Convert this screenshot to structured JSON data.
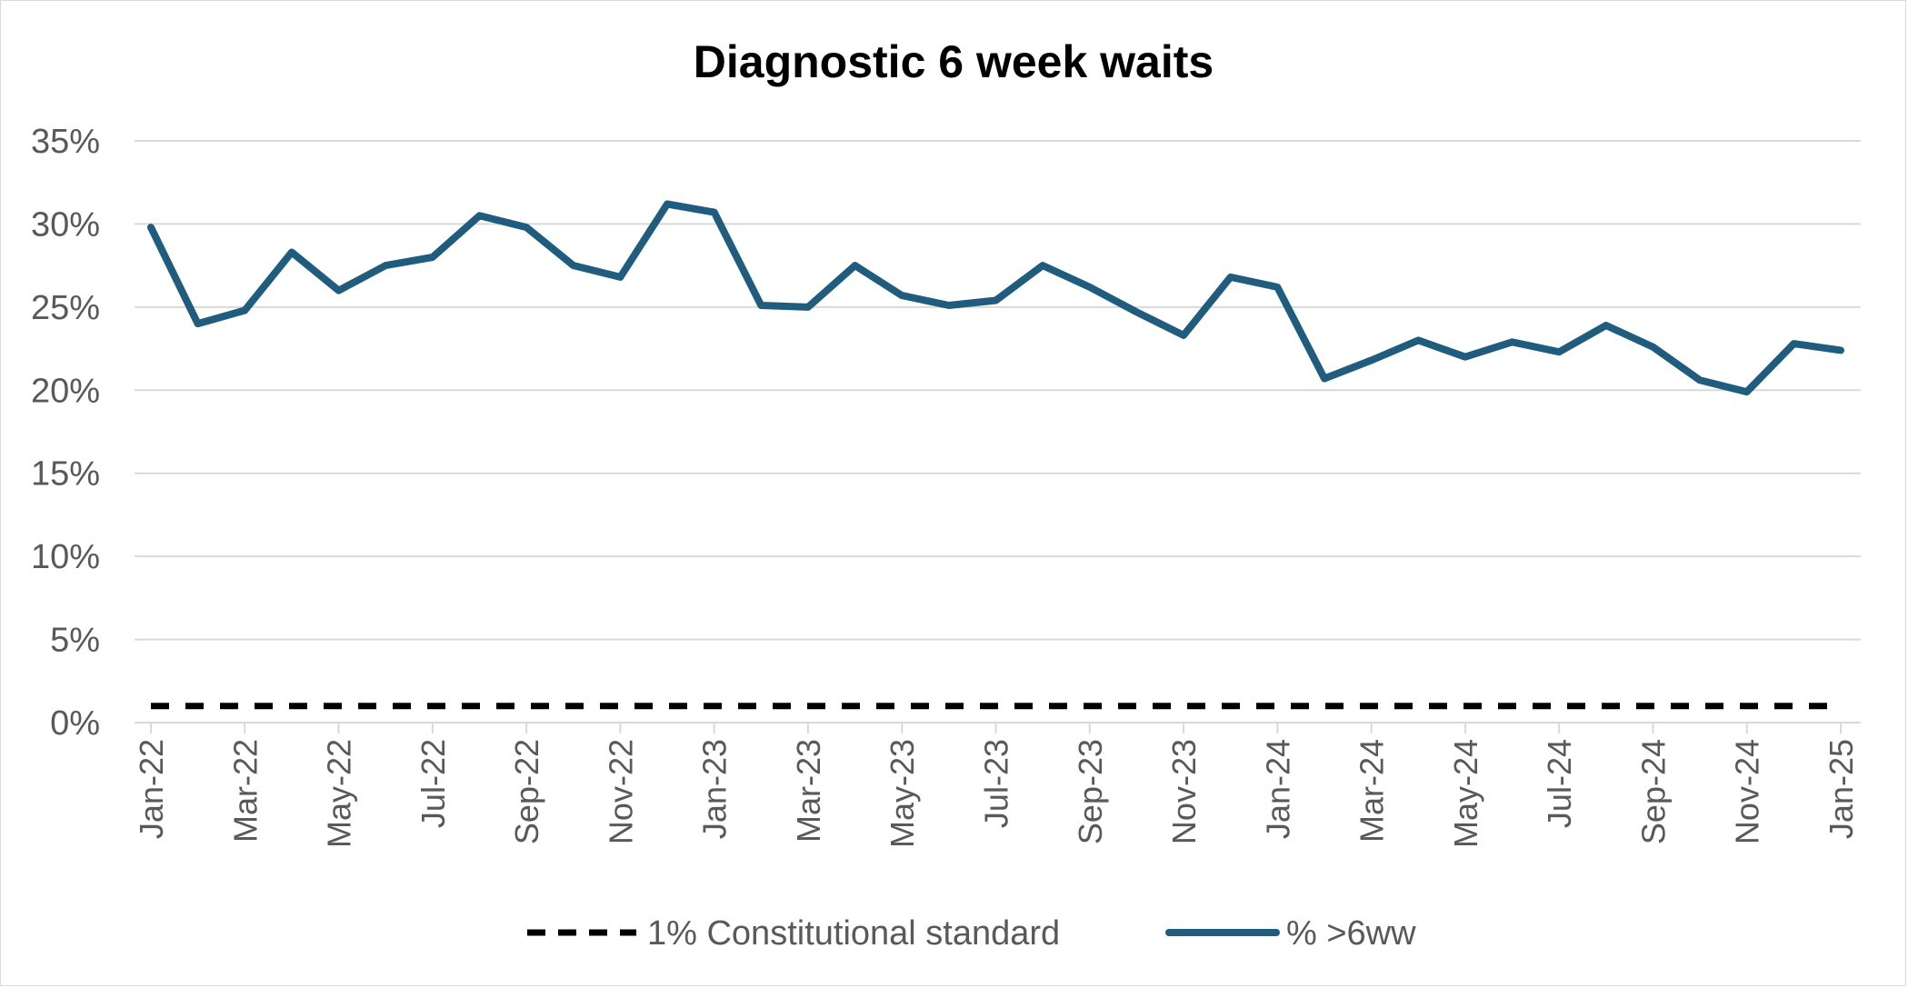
{
  "chart_data": {
    "type": "line",
    "title": "Diagnostic 6 week waits",
    "xlabel": "",
    "ylabel": "",
    "ylim": [
      0,
      0.35
    ],
    "y_ticks": [
      {
        "value": 0,
        "label": "0%"
      },
      {
        "value": 0.05,
        "label": "5%"
      },
      {
        "value": 0.1,
        "label": "10%"
      },
      {
        "value": 0.15,
        "label": "15%"
      },
      {
        "value": 0.2,
        "label": "20%"
      },
      {
        "value": 0.25,
        "label": "25%"
      },
      {
        "value": 0.3,
        "label": "30%"
      },
      {
        "value": 0.35,
        "label": "35%"
      }
    ],
    "x_tick_labels": [
      "Jan-22",
      "Mar-22",
      "May-22",
      "Jul-22",
      "Sep-22",
      "Nov-22",
      "Jan-23",
      "Mar-23",
      "May-23",
      "Jul-23",
      "Sep-23",
      "Nov-23",
      "Jan-24",
      "Mar-24",
      "May-24",
      "Jul-24",
      "Sep-24",
      "Nov-24",
      "Jan-25"
    ],
    "x": [
      "Jan-22",
      "Feb-22",
      "Mar-22",
      "Apr-22",
      "May-22",
      "Jun-22",
      "Jul-22",
      "Aug-22",
      "Sep-22",
      "Oct-22",
      "Nov-22",
      "Dec-22",
      "Jan-23",
      "Feb-23",
      "Mar-23",
      "Apr-23",
      "May-23",
      "Jun-23",
      "Jul-23",
      "Aug-23",
      "Sep-23",
      "Oct-23",
      "Nov-23",
      "Dec-23",
      "Jan-24",
      "Feb-24",
      "Mar-24",
      "Apr-24",
      "May-24",
      "Jun-24",
      "Jul-24",
      "Aug-24",
      "Sep-24",
      "Oct-24",
      "Nov-24",
      "Dec-24",
      "Jan-25"
    ],
    "grid": true,
    "legend_placement": "bottom",
    "series": [
      {
        "name": "1% Constitutional standard",
        "style": "dashed",
        "color": "#000000",
        "values": [
          0.01,
          0.01,
          0.01,
          0.01,
          0.01,
          0.01,
          0.01,
          0.01,
          0.01,
          0.01,
          0.01,
          0.01,
          0.01,
          0.01,
          0.01,
          0.01,
          0.01,
          0.01,
          0.01,
          0.01,
          0.01,
          0.01,
          0.01,
          0.01,
          0.01,
          0.01,
          0.01,
          0.01,
          0.01,
          0.01,
          0.01,
          0.01,
          0.01,
          0.01,
          0.01,
          0.01,
          0.01
        ]
      },
      {
        "name": "% >6ww",
        "style": "solid",
        "color": "#1f5c7d",
        "values": [
          0.298,
          0.24,
          0.248,
          0.283,
          0.26,
          0.275,
          0.28,
          0.305,
          0.298,
          0.275,
          0.268,
          0.312,
          0.307,
          0.251,
          0.25,
          0.275,
          0.257,
          0.251,
          0.254,
          0.275,
          0.262,
          0.247,
          0.233,
          0.268,
          0.262,
          0.207,
          0.218,
          0.23,
          0.22,
          0.229,
          0.223,
          0.239,
          0.226,
          0.206,
          0.199,
          0.228,
          0.224
        ]
      }
    ]
  }
}
